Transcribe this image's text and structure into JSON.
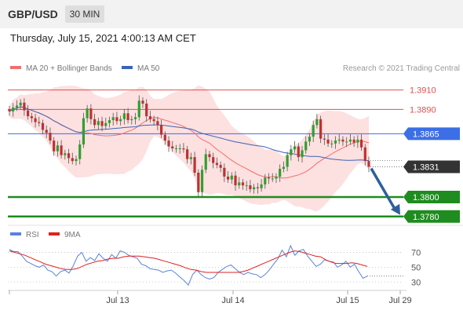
{
  "header": {
    "symbol": "GBP/USD",
    "timeframe": "30 MIN"
  },
  "datetime": "Thursday, July 15, 2021 4:00:13 AM CET",
  "legend": {
    "ma_bb": "MA 20 + Bollinger Bands",
    "ma50": "MA 50",
    "credit": "Research © 2021 Trading Central"
  },
  "rsi_legend": {
    "rsi": "RSI",
    "ma": "9MA"
  },
  "colors": {
    "bb_fill": "#fde0e0",
    "ma20": "#f07070",
    "ma50": "#3c64b4",
    "resistance": "#e05050",
    "pivot": "#3c6ee6",
    "support": "#1e8c1e",
    "arrow": "#2f5f9e",
    "bull": "#2ea02e",
    "bear": "#c03030",
    "rsi": "#5a82dc",
    "rsi_ma": "#e02020"
  },
  "chart_data": [
    {
      "type": "candlestick",
      "title": "GBP/USD 30 MIN",
      "x_ticks": [
        "Jul 13",
        "Jul 14",
        "Jul 15",
        "Jul 29"
      ],
      "levels": [
        {
          "label": "1.3910",
          "value": 1.391,
          "kind": "resistance"
        },
        {
          "label": "1.3890",
          "value": 1.389,
          "kind": "resistance"
        },
        {
          "label": "1.3865",
          "value": 1.3865,
          "kind": "pivot"
        },
        {
          "label": "1.3831",
          "value": 1.3831,
          "kind": "last"
        },
        {
          "label": "1.3800",
          "value": 1.38,
          "kind": "support"
        },
        {
          "label": "1.3780",
          "value": 1.378,
          "kind": "support"
        }
      ],
      "close": [
        1.3888,
        1.3892,
        1.3894,
        1.3897,
        1.3889,
        1.3883,
        1.3881,
        1.3877,
        1.3876,
        1.3869,
        1.3866,
        1.3858,
        1.3847,
        1.3853,
        1.3843,
        1.3845,
        1.384,
        1.3837,
        1.3839,
        1.3854,
        1.3881,
        1.3891,
        1.388,
        1.3874,
        1.3878,
        1.3873,
        1.3876,
        1.3879,
        1.3882,
        1.3878,
        1.388,
        1.3886,
        1.3879,
        1.388,
        1.3882,
        1.3899,
        1.3896,
        1.3883,
        1.388,
        1.3878,
        1.3874,
        1.3864,
        1.3858,
        1.3852,
        1.385,
        1.385,
        1.385,
        1.3849,
        1.3839,
        1.3841,
        1.3825,
        1.3805,
        1.3828,
        1.3844,
        1.3841,
        1.3835,
        1.3833,
        1.383,
        1.3821,
        1.3818,
        1.3822,
        1.3812,
        1.3815,
        1.3812,
        1.3812,
        1.3808,
        1.381,
        1.3809,
        1.3813,
        1.382,
        1.3819,
        1.3819,
        1.3821,
        1.3829,
        1.3831,
        1.3843,
        1.3849,
        1.3852,
        1.3841,
        1.3848,
        1.3857,
        1.3862,
        1.3874,
        1.388,
        1.386,
        1.3859,
        1.3855,
        1.3855,
        1.3858,
        1.3859,
        1.3857,
        1.3857,
        1.3859,
        1.3856,
        1.3859,
        1.3851,
        1.3837,
        1.3831
      ],
      "y_range": [
        1.3775,
        1.3925
      ]
    },
    {
      "type": "line",
      "title": "RSI",
      "y_ticks": [
        "70",
        "50",
        "30"
      ],
      "series": [
        {
          "name": "RSI",
          "values": [
            74,
            71,
            71,
            65,
            58,
            55,
            52,
            50,
            53,
            46,
            44,
            38,
            44,
            46,
            42,
            52,
            65,
            70,
            58,
            63,
            59,
            68,
            62,
            58,
            67,
            62,
            72,
            70,
            66,
            64,
            62,
            54,
            52,
            48,
            47,
            46,
            43,
            45,
            46,
            42,
            37,
            32,
            26,
            40,
            46,
            40,
            36,
            34,
            36,
            43,
            47,
            51,
            53,
            48,
            43,
            40,
            43,
            41,
            40,
            36,
            40,
            46,
            54,
            61,
            73,
            64,
            79,
            66,
            72,
            74,
            65,
            58,
            51,
            54,
            60,
            58,
            57,
            50,
            53,
            58,
            50,
            54,
            44,
            35,
            38
          ]
        },
        {
          "name": "9MA",
          "values": [
            72,
            70,
            68,
            66,
            63,
            60,
            57,
            54,
            52,
            50,
            48,
            47,
            47,
            48,
            51,
            54,
            56,
            58,
            59,
            61,
            62,
            62,
            64,
            65,
            65,
            65,
            64,
            63,
            62,
            60,
            58,
            56,
            54,
            52,
            49,
            47,
            46,
            44,
            43,
            43,
            43,
            43,
            43,
            43,
            43,
            44,
            46,
            49,
            52,
            55,
            58,
            61,
            64,
            67,
            70,
            72,
            71,
            69,
            67,
            65,
            64,
            60,
            57,
            55,
            55,
            55,
            56,
            55,
            53,
            51
          ]
        }
      ]
    }
  ]
}
